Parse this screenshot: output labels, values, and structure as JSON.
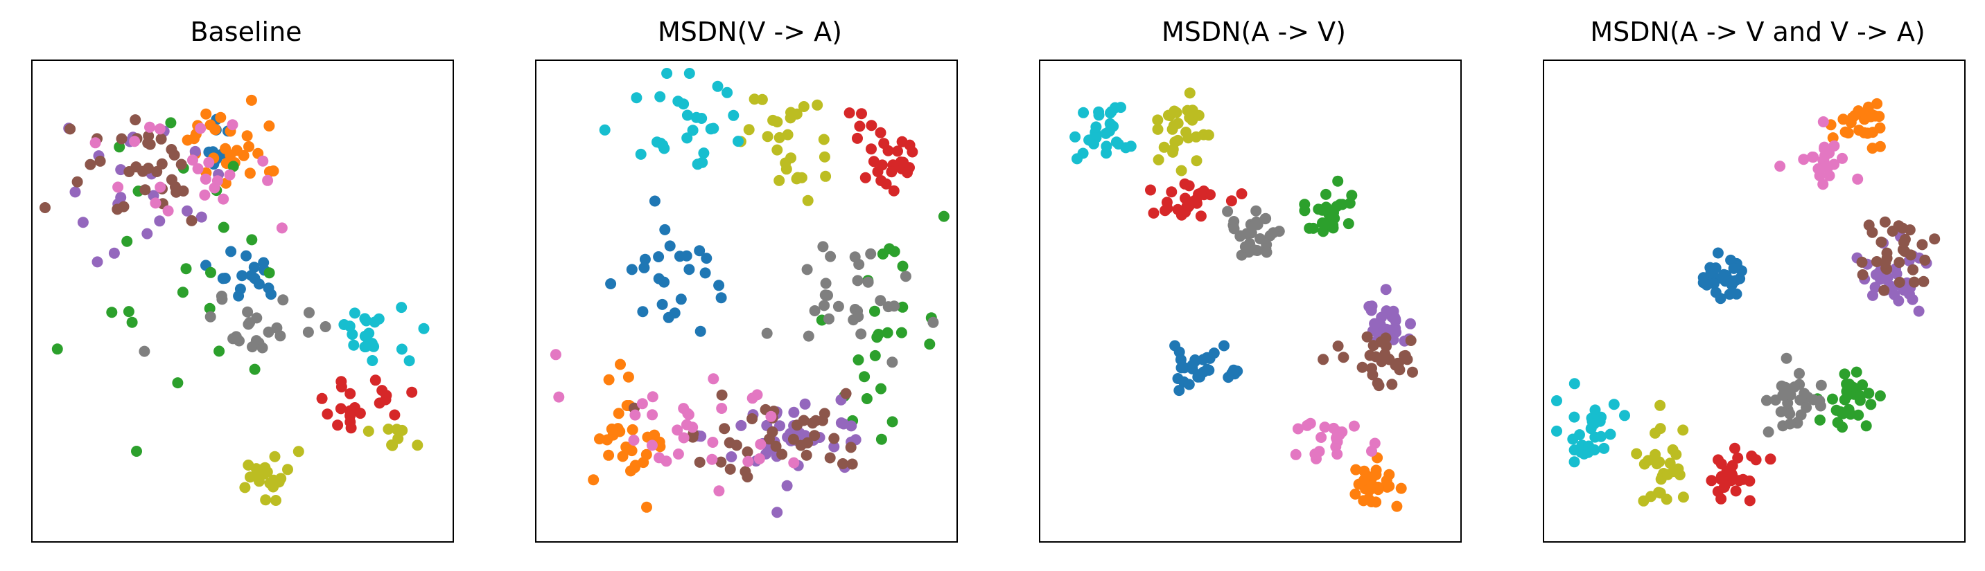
{
  "figure_title": "",
  "colors": {
    "blue": "#1f77b4",
    "orange": "#ff7f0e",
    "green": "#2ca02c",
    "red": "#d62728",
    "purple": "#9467bd",
    "brown": "#8c564b",
    "pink": "#e377c2",
    "gray": "#7f7f7f",
    "olive": "#bcbd22",
    "cyan": "#17becf"
  },
  "chart_data": [
    {
      "type": "scatter",
      "title": "Baseline",
      "xlabel": "",
      "ylabel": "",
      "axes_ticks": false,
      "grid": false,
      "legend": false,
      "xlim": [
        0,
        1
      ],
      "ylim": [
        0,
        1
      ],
      "clusters": [
        {
          "color": "blue",
          "n": 16,
          "cx": 0.51,
          "cy": 0.44,
          "sx": 0.05,
          "sy": 0.035
        },
        {
          "color": "blue",
          "n": 8,
          "cx": 0.44,
          "cy": 0.18,
          "sx": 0.02,
          "sy": 0.03
        },
        {
          "color": "orange",
          "n": 28,
          "cx": 0.48,
          "cy": 0.15,
          "sx": 0.06,
          "sy": 0.045
        },
        {
          "color": "green",
          "n": 22,
          "cx": 0.32,
          "cy": 0.38,
          "sx": 0.14,
          "sy": 0.18
        },
        {
          "color": "red",
          "n": 20,
          "cx": 0.78,
          "cy": 0.72,
          "sx": 0.07,
          "sy": 0.035
        },
        {
          "color": "purple",
          "n": 20,
          "cx": 0.25,
          "cy": 0.24,
          "sx": 0.1,
          "sy": 0.08
        },
        {
          "color": "brown",
          "n": 32,
          "cx": 0.22,
          "cy": 0.22,
          "sx": 0.1,
          "sy": 0.07
        },
        {
          "color": "pink",
          "n": 22,
          "cx": 0.41,
          "cy": 0.22,
          "sx": 0.13,
          "sy": 0.08
        },
        {
          "color": "gray",
          "n": 22,
          "cx": 0.53,
          "cy": 0.57,
          "sx": 0.08,
          "sy": 0.035
        },
        {
          "color": "olive",
          "n": 22,
          "cx": 0.56,
          "cy": 0.88,
          "sx": 0.03,
          "sy": 0.025
        },
        {
          "color": "olive",
          "n": 8,
          "cx": 0.88,
          "cy": 0.8,
          "sx": 0.03,
          "sy": 0.02
        },
        {
          "color": "cyan",
          "n": 20,
          "cx": 0.82,
          "cy": 0.57,
          "sx": 0.05,
          "sy": 0.035
        }
      ]
    },
    {
      "type": "scatter",
      "title": "MSDN(V -> A)",
      "xlabel": "",
      "ylabel": "",
      "axes_ticks": false,
      "grid": false,
      "legend": false,
      "xlim": [
        0,
        1
      ],
      "ylim": [
        0,
        1
      ],
      "clusters": [
        {
          "color": "blue",
          "n": 24,
          "cx": 0.33,
          "cy": 0.45,
          "sx": 0.06,
          "sy": 0.05
        },
        {
          "color": "orange",
          "n": 28,
          "cx": 0.2,
          "cy": 0.81,
          "sx": 0.05,
          "sy": 0.065
        },
        {
          "color": "green",
          "n": 24,
          "cx": 0.82,
          "cy": 0.57,
          "sx": 0.08,
          "sy": 0.1
        },
        {
          "color": "red",
          "n": 28,
          "cx": 0.86,
          "cy": 0.17,
          "sx": 0.05,
          "sy": 0.045
        },
        {
          "color": "purple",
          "n": 38,
          "cx": 0.63,
          "cy": 0.8,
          "sx": 0.12,
          "sy": 0.05
        },
        {
          "color": "brown",
          "n": 38,
          "cx": 0.56,
          "cy": 0.78,
          "sx": 0.13,
          "sy": 0.05
        },
        {
          "color": "pink",
          "n": 30,
          "cx": 0.38,
          "cy": 0.77,
          "sx": 0.16,
          "sy": 0.06
        },
        {
          "color": "gray",
          "n": 28,
          "cx": 0.78,
          "cy": 0.5,
          "sx": 0.08,
          "sy": 0.07
        },
        {
          "color": "olive",
          "n": 26,
          "cx": 0.62,
          "cy": 0.16,
          "sx": 0.06,
          "sy": 0.05
        },
        {
          "color": "cyan",
          "n": 26,
          "cx": 0.35,
          "cy": 0.12,
          "sx": 0.09,
          "sy": 0.05
        }
      ]
    },
    {
      "type": "scatter",
      "title": "MSDN(A -> V)",
      "xlabel": "",
      "ylabel": "",
      "axes_ticks": false,
      "grid": false,
      "legend": false,
      "xlim": [
        0,
        1
      ],
      "ylim": [
        0,
        1
      ],
      "clusters": [
        {
          "color": "blue",
          "n": 26,
          "cx": 0.35,
          "cy": 0.64,
          "sx": 0.035,
          "sy": 0.025
        },
        {
          "color": "blue",
          "n": 4,
          "cx": 0.46,
          "cy": 0.66,
          "sx": 0.01,
          "sy": 0.005
        },
        {
          "color": "orange",
          "n": 28,
          "cx": 0.8,
          "cy": 0.9,
          "sx": 0.035,
          "sy": 0.025
        },
        {
          "color": "green",
          "n": 28,
          "cx": 0.7,
          "cy": 0.3,
          "sx": 0.03,
          "sy": 0.035
        },
        {
          "color": "red",
          "n": 26,
          "cx": 0.35,
          "cy": 0.28,
          "sx": 0.06,
          "sy": 0.025
        },
        {
          "color": "purple",
          "n": 28,
          "cx": 0.85,
          "cy": 0.56,
          "sx": 0.035,
          "sy": 0.03
        },
        {
          "color": "brown",
          "n": 30,
          "cx": 0.83,
          "cy": 0.62,
          "sx": 0.05,
          "sy": 0.035
        },
        {
          "color": "pink",
          "n": 20,
          "cx": 0.72,
          "cy": 0.81,
          "sx": 0.04,
          "sy": 0.025
        },
        {
          "color": "gray",
          "n": 28,
          "cx": 0.5,
          "cy": 0.36,
          "sx": 0.04,
          "sy": 0.03
        },
        {
          "color": "olive",
          "n": 28,
          "cx": 0.3,
          "cy": 0.12,
          "sx": 0.04,
          "sy": 0.04
        },
        {
          "color": "cyan",
          "n": 26,
          "cx": 0.12,
          "cy": 0.13,
          "sx": 0.035,
          "sy": 0.03
        }
      ]
    },
    {
      "type": "scatter",
      "title": "MSDN(A -> V and V -> A)",
      "xlabel": "",
      "ylabel": "",
      "axes_ticks": false,
      "grid": false,
      "legend": false,
      "xlim": [
        0,
        1
      ],
      "ylim": [
        0,
        1
      ],
      "clusters": [
        {
          "color": "blue",
          "n": 28,
          "cx": 0.42,
          "cy": 0.45,
          "sx": 0.025,
          "sy": 0.025
        },
        {
          "color": "orange",
          "n": 28,
          "cx": 0.77,
          "cy": 0.1,
          "sx": 0.035,
          "sy": 0.03
        },
        {
          "color": "green",
          "n": 28,
          "cx": 0.75,
          "cy": 0.71,
          "sx": 0.04,
          "sy": 0.035
        },
        {
          "color": "red",
          "n": 26,
          "cx": 0.45,
          "cy": 0.88,
          "sx": 0.04,
          "sy": 0.035
        },
        {
          "color": "purple",
          "n": 30,
          "cx": 0.85,
          "cy": 0.45,
          "sx": 0.04,
          "sy": 0.035
        },
        {
          "color": "brown",
          "n": 30,
          "cx": 0.86,
          "cy": 0.4,
          "sx": 0.045,
          "sy": 0.035
        },
        {
          "color": "pink",
          "n": 24,
          "cx": 0.67,
          "cy": 0.19,
          "sx": 0.035,
          "sy": 0.035
        },
        {
          "color": "gray",
          "n": 28,
          "cx": 0.6,
          "cy": 0.72,
          "sx": 0.04,
          "sy": 0.03
        },
        {
          "color": "olive",
          "n": 28,
          "cx": 0.28,
          "cy": 0.86,
          "sx": 0.035,
          "sy": 0.05
        },
        {
          "color": "cyan",
          "n": 28,
          "cx": 0.1,
          "cy": 0.78,
          "sx": 0.04,
          "sy": 0.035
        }
      ]
    }
  ]
}
